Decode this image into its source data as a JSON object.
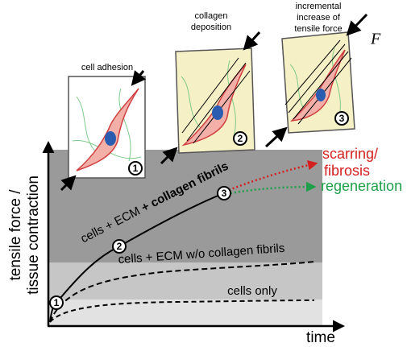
{
  "panels": [
    {
      "label": [
        "cell adhesion"
      ],
      "number": "1"
    },
    {
      "label": [
        "collagen",
        "deposition"
      ],
      "number": "2"
    },
    {
      "label": [
        "incremental",
        "increase of",
        "tensile force"
      ],
      "number": "3",
      "force_symbol": "F"
    }
  ],
  "graph": {
    "y_axis_label": [
      "tensile force /",
      "tissue contraction"
    ],
    "x_axis_label": "time",
    "curves": [
      {
        "label_prefix": "cells + ECM",
        "label_bold": "+ collagen fibrils"
      },
      {
        "label": "cells + ECM w/o collagen fibrils"
      },
      {
        "label": "cells only"
      }
    ],
    "markers": [
      "1",
      "2",
      "3"
    ],
    "outcomes": [
      {
        "label": [
          "scarring/",
          "fibrosis"
        ]
      },
      {
        "label": [
          "regeneration"
        ]
      }
    ]
  }
}
